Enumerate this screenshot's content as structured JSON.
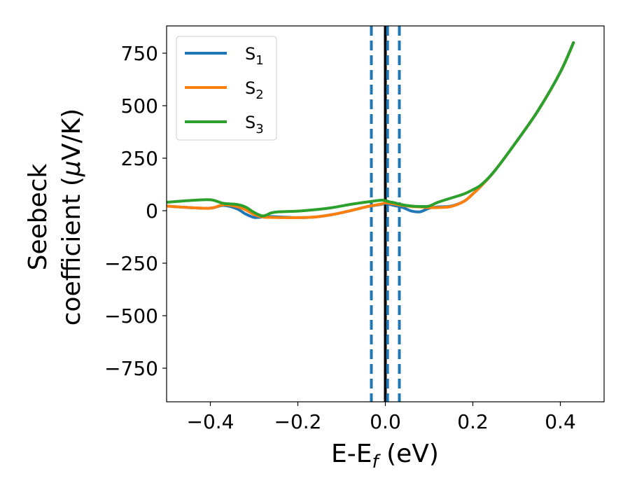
{
  "chart_data": {
    "type": "line",
    "xlabel": "E-E",
    "xlabel_sub": "f",
    "xlabel_unit": " (eV)",
    "ylabel_line1": "Seebeck",
    "ylabel_line2_prefix": "coefficient  (",
    "ylabel_mu": "μ",
    "ylabel_line2_suffix": "V/K)",
    "xlim": [
      -0.5,
      0.5
    ],
    "ylim": [
      -910,
      880
    ],
    "xticks": [
      {
        "value": -0.4,
        "label": "−0.4"
      },
      {
        "value": -0.2,
        "label": "−0.2"
      },
      {
        "value": 0.0,
        "label": "0.0"
      },
      {
        "value": 0.2,
        "label": "0.2"
      },
      {
        "value": 0.4,
        "label": "0.4"
      }
    ],
    "yticks": [
      {
        "value": 750,
        "label": "750"
      },
      {
        "value": 500,
        "label": "500"
      },
      {
        "value": 250,
        "label": "250"
      },
      {
        "value": 0,
        "label": "0"
      },
      {
        "value": -250,
        "label": "−250"
      },
      {
        "value": -500,
        "label": "−500"
      },
      {
        "value": -750,
        "label": "−750"
      }
    ],
    "legend_position": "upper-left",
    "grid": false,
    "series": [
      {
        "name": "S",
        "sub": "1",
        "color": "#1f77b4",
        "x": [
          -0.5,
          -0.45,
          -0.4,
          -0.37,
          -0.34,
          -0.32,
          -0.3,
          -0.28,
          -0.26,
          -0.24,
          -0.2,
          -0.16,
          -0.12,
          -0.08,
          -0.04,
          -0.01,
          0.0,
          0.01,
          0.02,
          0.04,
          0.06,
          0.08,
          0.1,
          0.12,
          0.15,
          0.18,
          0.2,
          0.22,
          0.25,
          0.3,
          0.35,
          0.4,
          0.43
        ],
        "y": [
          22,
          15,
          12,
          25,
          10,
          -15,
          -32,
          -30,
          -28,
          -30,
          -33,
          -30,
          -18,
          0,
          20,
          30,
          35,
          30,
          25,
          15,
          -2,
          -5,
          12,
          18,
          22,
          45,
          80,
          120,
          190,
          330,
          480,
          660,
          800
        ]
      },
      {
        "name": "S",
        "sub": "2",
        "color": "#ff7f0e",
        "x": [
          -0.5,
          -0.45,
          -0.4,
          -0.37,
          -0.34,
          -0.32,
          -0.3,
          -0.28,
          -0.26,
          -0.24,
          -0.2,
          -0.16,
          -0.12,
          -0.08,
          -0.04,
          -0.01,
          0.0,
          0.01,
          0.02,
          0.04,
          0.06,
          0.08,
          0.1,
          0.12,
          0.15,
          0.18,
          0.2,
          0.22,
          0.25,
          0.3,
          0.35,
          0.4,
          0.43
        ],
        "y": [
          22,
          15,
          12,
          28,
          20,
          5,
          -18,
          -30,
          -32,
          -33,
          -33,
          -30,
          -18,
          0,
          20,
          32,
          38,
          35,
          32,
          25,
          20,
          18,
          15,
          15,
          20,
          45,
          80,
          120,
          190,
          330,
          480,
          660,
          800
        ]
      },
      {
        "name": "S",
        "sub": "3",
        "color": "#2ca02c",
        "x": [
          -0.5,
          -0.45,
          -0.4,
          -0.37,
          -0.34,
          -0.32,
          -0.3,
          -0.28,
          -0.26,
          -0.24,
          -0.2,
          -0.16,
          -0.12,
          -0.08,
          -0.04,
          -0.01,
          0.0,
          0.01,
          0.02,
          0.04,
          0.06,
          0.08,
          0.1,
          0.12,
          0.15,
          0.18,
          0.2,
          0.22,
          0.25,
          0.3,
          0.35,
          0.4,
          0.43
        ],
        "y": [
          40,
          48,
          52,
          35,
          30,
          18,
          -8,
          -25,
          -10,
          -5,
          -2,
          5,
          15,
          30,
          42,
          50,
          48,
          42,
          38,
          28,
          22,
          20,
          22,
          40,
          60,
          80,
          100,
          125,
          190,
          330,
          480,
          660,
          800
        ]
      }
    ],
    "vlines": [
      {
        "x": -0.032,
        "color": "#1f77b4",
        "style": "dashed"
      },
      {
        "x": 0.0,
        "color": "#000000",
        "style": "solid"
      },
      {
        "x": 0.005,
        "color": "#1f77b4",
        "style": "dashed"
      },
      {
        "x": 0.032,
        "color": "#1f77b4",
        "style": "dashed"
      }
    ]
  }
}
